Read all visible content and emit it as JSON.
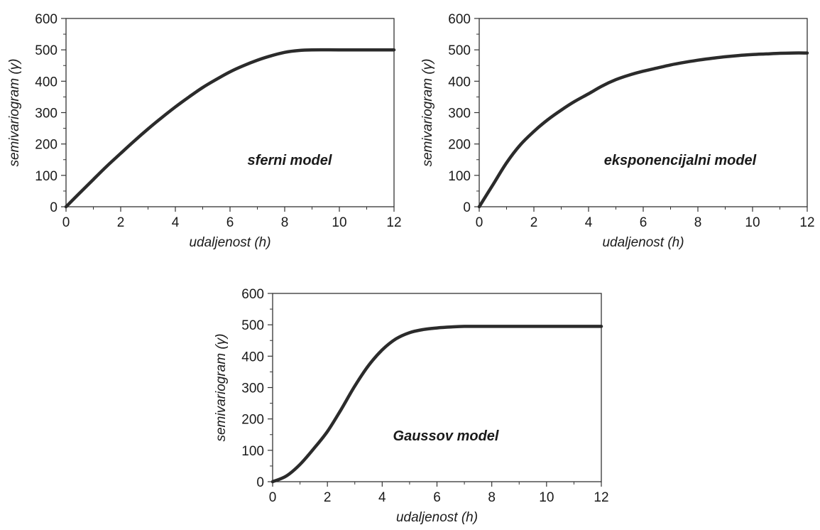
{
  "chart_data": [
    {
      "type": "line",
      "annotation": "sferni model",
      "xlabel": "udaljenost (h)",
      "ylabel": "semivariogram (γ)",
      "xlim": [
        0,
        12
      ],
      "ylim": [
        0,
        600
      ],
      "xticks": [
        0,
        2,
        4,
        6,
        8,
        10,
        12
      ],
      "yticks": [
        0,
        100,
        200,
        300,
        400,
        500,
        600
      ],
      "grid": false,
      "line_color": "#2b2b2b",
      "series": [
        {
          "x": [
            0,
            0.5,
            1,
            1.5,
            2,
            2.5,
            3,
            3.5,
            4,
            4.5,
            5,
            5.5,
            6,
            6.5,
            7,
            7.5,
            8,
            8.5,
            9,
            10,
            11,
            12
          ],
          "y": [
            0,
            44,
            87,
            130,
            170,
            210,
            248,
            284,
            318,
            350,
            380,
            406,
            430,
            450,
            467,
            481,
            492,
            498,
            500,
            500,
            500,
            500
          ]
        }
      ]
    },
    {
      "type": "line",
      "annotation": "eksponencijalni model",
      "xlabel": "udaljenost (h)",
      "ylabel": "semivariogram (γ)",
      "xlim": [
        0,
        12
      ],
      "ylim": [
        0,
        600
      ],
      "xticks": [
        0,
        2,
        4,
        6,
        8,
        10,
        12
      ],
      "yticks": [
        0,
        100,
        200,
        300,
        400,
        500,
        600
      ],
      "grid": false,
      "line_color": "#2b2b2b",
      "series": [
        {
          "x": [
            0,
            0.5,
            1,
            1.5,
            2,
            2.5,
            3,
            3.5,
            4,
            4.5,
            5,
            5.5,
            6,
            6.5,
            7,
            7.5,
            8,
            8.5,
            9,
            9.5,
            10,
            10.5,
            11,
            11.5,
            12
          ],
          "y": [
            0,
            70,
            140,
            197,
            240,
            277,
            308,
            336,
            360,
            385,
            405,
            420,
            432,
            442,
            452,
            460,
            467,
            473,
            478,
            482,
            485,
            487,
            489,
            490,
            490
          ]
        }
      ]
    },
    {
      "type": "line",
      "annotation": "Gaussov model",
      "xlabel": "udaljenost (h)",
      "ylabel": "semivariogram (γ)",
      "xlim": [
        0,
        12
      ],
      "ylim": [
        0,
        600
      ],
      "xticks": [
        0,
        2,
        4,
        6,
        8,
        10,
        12
      ],
      "yticks": [
        0,
        100,
        200,
        300,
        400,
        500,
        600
      ],
      "grid": false,
      "line_color": "#2b2b2b",
      "series": [
        {
          "x": [
            0,
            0.5,
            1,
            1.5,
            2,
            2.5,
            3,
            3.5,
            4,
            4.5,
            5,
            5.5,
            6,
            6.5,
            7,
            8,
            9,
            10,
            11,
            12
          ],
          "y": [
            0,
            18,
            55,
            105,
            160,
            230,
            305,
            370,
            420,
            455,
            475,
            485,
            490,
            493,
            495,
            495,
            495,
            495,
            495,
            495
          ]
        }
      ]
    }
  ]
}
